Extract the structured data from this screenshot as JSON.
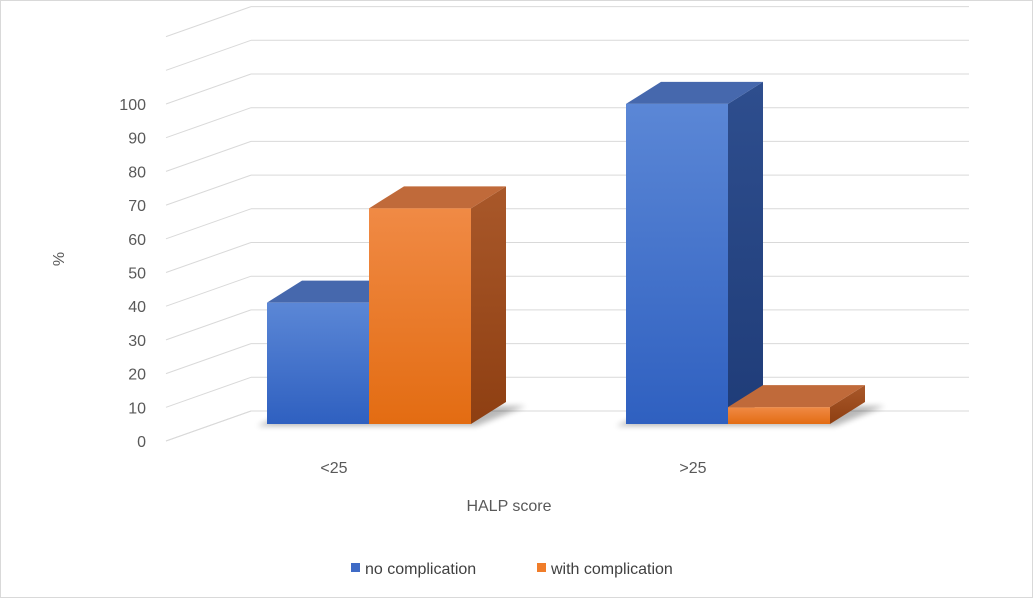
{
  "chart_data": {
    "type": "bar",
    "style": "3d-clustered-column",
    "title": "",
    "xlabel": "HALP score",
    "ylabel": "%",
    "categories": [
      "<25",
      ">25"
    ],
    "series": [
      {
        "name": "no complication",
        "values": [
          36,
          95
        ],
        "color": "#4472c4"
      },
      {
        "name": "with complication",
        "values": [
          64,
          5
        ],
        "color": "#ed7d31"
      }
    ],
    "ylim": [
      0,
      100
    ],
    "yticks": [
      "0",
      "10",
      "20",
      "30",
      "40",
      "50",
      "60",
      "70",
      "80",
      "90",
      "100"
    ],
    "grid": true,
    "legend": "bottom"
  }
}
